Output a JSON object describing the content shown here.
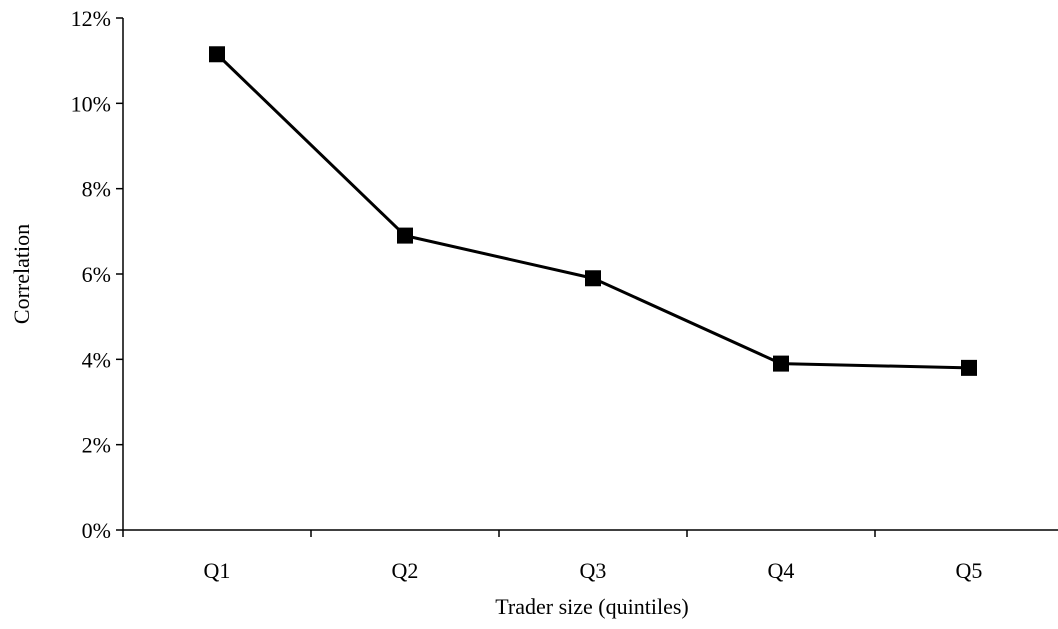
{
  "chart_data": {
    "type": "line",
    "title": "",
    "xlabel": "Trader size (quintiles)",
    "ylabel": "Correlation",
    "categories": [
      "Q1",
      "Q2",
      "Q3",
      "Q4",
      "Q5"
    ],
    "series": [
      {
        "values": [
          0.1115,
          0.069,
          0.059,
          0.039,
          0.038
        ]
      }
    ],
    "ylim": [
      0,
      0.12
    ],
    "yticks": [
      0,
      0.02,
      0.04,
      0.06,
      0.08,
      0.1,
      0.12
    ],
    "ytick_labels": [
      "0%",
      "2%",
      "4%",
      "6%",
      "8%",
      "10%",
      "12%"
    ],
    "grid": false,
    "legend": "none",
    "marker": "square",
    "colors": {
      "line": "#000000",
      "axis": "#000000"
    }
  }
}
